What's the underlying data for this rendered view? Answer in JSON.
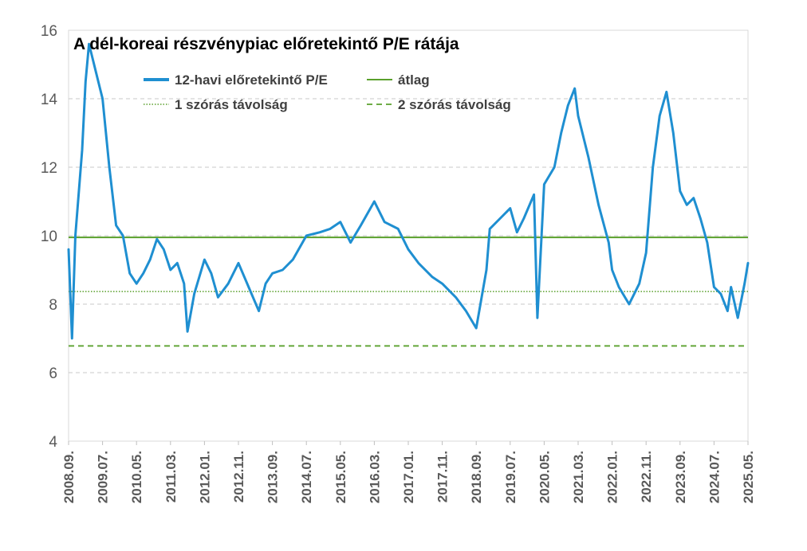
{
  "chart_data": {
    "type": "line",
    "title": "A dél-koreai részvénypiac előretekintő P/E rátája",
    "xlabel": "",
    "ylabel": "",
    "ylim": [
      4,
      16
    ],
    "yticks": [
      4,
      6,
      8,
      10,
      12,
      14,
      16
    ],
    "x_tick_labels": [
      "2008.09.",
      "2009.07.",
      "2010.05.",
      "2011.03.",
      "2012.01.",
      "2012.11.",
      "2013.09.",
      "2014.07.",
      "2015.05.",
      "2016.03.",
      "2017.01.",
      "2017.11.",
      "2018.09.",
      "2019.07.",
      "2020.05.",
      "2021.03.",
      "2022.01.",
      "2022.11.",
      "2023.09.",
      "2024.07.",
      "2025.05."
    ],
    "grid": true,
    "legend_position": "top",
    "colors": {
      "pe": "#1f8fd1",
      "avg": "#5aa02c",
      "sd1": "#5aa02c",
      "sd2": "#5aa02c"
    },
    "series": [
      {
        "name": "12-havi előretekintő P/E",
        "style": "solid-thick",
        "x": [
          "2008.09.",
          "2008.10.",
          "2008.11.",
          "2009.01.",
          "2009.02.",
          "2009.03.",
          "2009.05.",
          "2009.07.",
          "2009.09.",
          "2009.11.",
          "2010.01.",
          "2010.03.",
          "2010.05.",
          "2010.07.",
          "2010.09.",
          "2010.11.",
          "2011.01.",
          "2011.03.",
          "2011.05.",
          "2011.07.",
          "2011.08.",
          "2011.10.",
          "2012.01.",
          "2012.03.",
          "2012.05.",
          "2012.08.",
          "2012.11.",
          "2013.02.",
          "2013.05.",
          "2013.07.",
          "2013.09.",
          "2013.12.",
          "2014.03.",
          "2014.07.",
          "2014.11.",
          "2015.02.",
          "2015.05.",
          "2015.08.",
          "2015.11.",
          "2016.03.",
          "2016.06.",
          "2016.10.",
          "2017.01.",
          "2017.04.",
          "2017.08.",
          "2017.11.",
          "2018.03.",
          "2018.06.",
          "2018.09.",
          "2018.12.",
          "2019.01.",
          "2019.04.",
          "2019.07.",
          "2019.09.",
          "2019.11.",
          "2020.02.",
          "2020.03.",
          "2020.05.",
          "2020.08.",
          "2020.10.",
          "2020.12.",
          "2021.02.",
          "2021.03.",
          "2021.06.",
          "2021.09.",
          "2021.12.",
          "2022.01.",
          "2022.03.",
          "2022.06.",
          "2022.09.",
          "2022.11.",
          "2023.01.",
          "2023.03.",
          "2023.05.",
          "2023.07.",
          "2023.09.",
          "2023.11.",
          "2024.01.",
          "2024.03.",
          "2024.05.",
          "2024.07.",
          "2024.09.",
          "2024.11.",
          "2024.12.",
          "2025.02.",
          "2025.04.",
          "2025.05."
        ],
        "values": [
          9.6,
          7.0,
          10.0,
          12.5,
          14.5,
          15.6,
          14.8,
          14.0,
          12.0,
          10.3,
          10.0,
          8.9,
          8.6,
          8.9,
          9.3,
          9.9,
          9.6,
          9.0,
          9.2,
          8.6,
          7.2,
          8.3,
          9.3,
          8.9,
          8.2,
          8.6,
          9.2,
          8.5,
          7.8,
          8.6,
          8.9,
          9.0,
          9.3,
          10.0,
          10.1,
          10.2,
          10.4,
          9.8,
          10.3,
          11.0,
          10.4,
          10.2,
          9.6,
          9.2,
          8.8,
          8.6,
          8.2,
          7.8,
          7.3,
          9.0,
          10.2,
          10.5,
          10.8,
          10.1,
          10.5,
          11.2,
          7.6,
          11.5,
          12.0,
          13.0,
          13.8,
          14.3,
          13.5,
          12.3,
          10.9,
          9.8,
          9.0,
          8.5,
          8.0,
          8.6,
          9.5,
          12.0,
          13.5,
          14.2,
          13.0,
          11.3,
          10.9,
          11.1,
          10.5,
          9.8,
          8.5,
          8.3,
          7.8,
          8.5,
          7.6,
          8.6,
          9.2
        ]
      },
      {
        "name": "átlag",
        "style": "solid",
        "value": 9.95
      },
      {
        "name": "1 szórás távolság",
        "style": "dotted",
        "value": 8.37
      },
      {
        "name": "2 szórás távolság",
        "style": "dashed",
        "value": 6.78
      }
    ]
  }
}
